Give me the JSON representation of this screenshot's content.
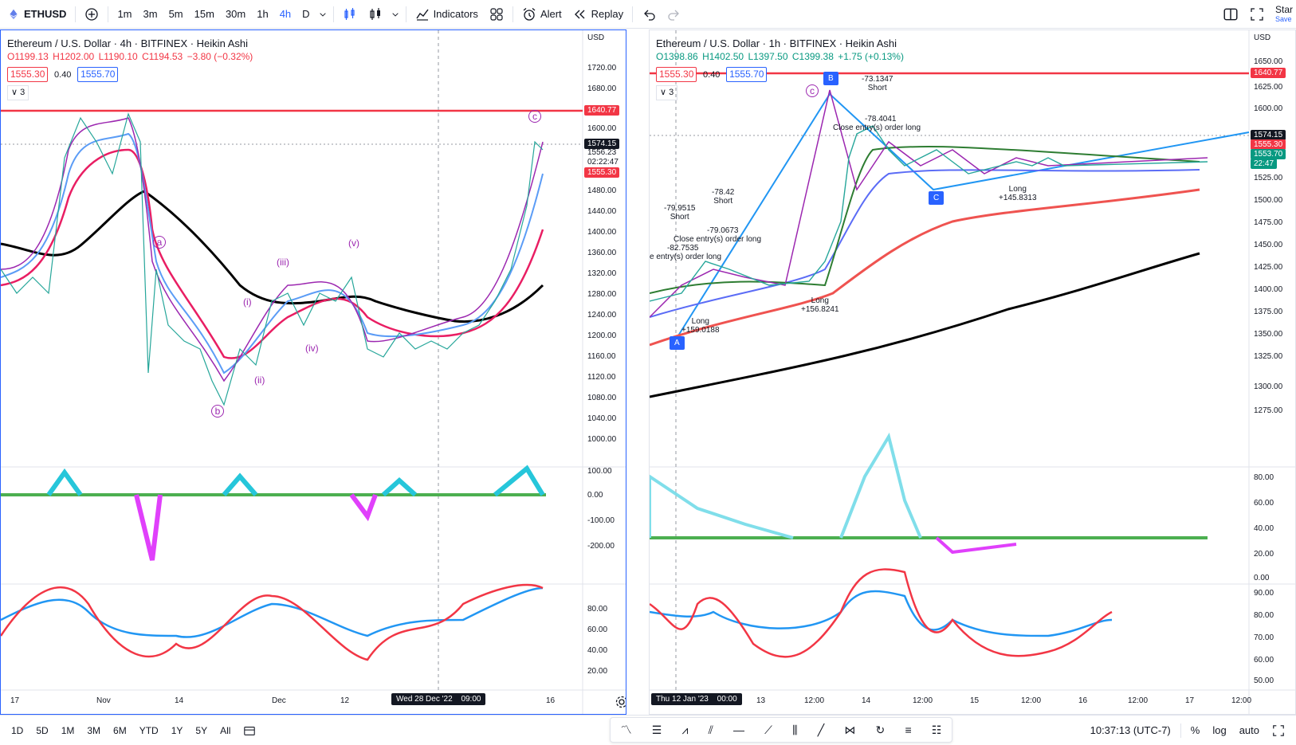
{
  "toolbar": {
    "symbol": "ETHUSD",
    "timeframes": [
      "1m",
      "3m",
      "5m",
      "15m",
      "30m",
      "1h",
      "4h",
      "D"
    ],
    "active_timeframe": "4h",
    "indicators_label": "Indicators",
    "alert_label": "Alert",
    "replay_label": "Replay",
    "star_label": "Star",
    "save_label": "Save"
  },
  "left_chart": {
    "title": "Ethereum / U.S. Dollar · 4h · BITFINEX · Heikin Ashi",
    "ohlc": {
      "o": "O1199.13",
      "h": "H1202.00",
      "l": "L1190.10",
      "c": "C1194.53",
      "chg": "−3.80 (−0.32%)"
    },
    "bid": "1555.30",
    "spread": "0.40",
    "ask": "1555.70",
    "indicator_count": "3",
    "currency": "USD",
    "price_scale": [
      "1720.00",
      "1680.00",
      "1640.00",
      "1600.00",
      "1560.00",
      "1520.00",
      "1480.00",
      "1440.00",
      "1400.00",
      "1360.00",
      "1320.00",
      "1280.00",
      "1240.00",
      "1200.00",
      "1160.00",
      "1120.00",
      "1080.00",
      "1040.00",
      "1000.00"
    ],
    "tags": {
      "resistance": "1640.77",
      "last": "1574.15",
      "close": "1556.23",
      "countdown": "02:22:47",
      "bid": "1555.30"
    },
    "macd_scale": [
      "100.00",
      "0.00",
      "-100.00",
      "-200.00"
    ],
    "rsi_scale": [
      "80.00",
      "60.00",
      "40.00",
      "20.00"
    ],
    "time_labels": [
      "17",
      "Nov",
      "14",
      "Dec",
      "12",
      "16"
    ],
    "crosshair_time": "Wed 28 Dec '22",
    "crosshair_clock": "09:00",
    "waves": [
      "a",
      "b",
      "c",
      "(i)",
      "(ii)",
      "(iii)",
      "(iv)",
      "(v)"
    ]
  },
  "right_chart": {
    "title": "Ethereum / U.S. Dollar · 1h · BITFINEX · Heikin Ashi",
    "ohlc": {
      "o": "O1398.86",
      "h": "H1402.50",
      "l": "L1397.50",
      "c": "C1399.38",
      "chg": "+1.75 (+0.13%)"
    },
    "bid": "1555.30",
    "spread": "0.40",
    "ask": "1555.70",
    "indicator_count": "3",
    "currency": "USD",
    "price_scale": [
      "1650.00",
      "1625.00",
      "1600.00",
      "1575.00",
      "1550.00",
      "1525.00",
      "1500.00",
      "1475.00",
      "1450.00",
      "1425.00",
      "1400.00",
      "1375.00",
      "1350.00",
      "1325.00",
      "1300.00",
      "1275.00"
    ],
    "tags": {
      "resistance": "1640.77",
      "last": "1574.15",
      "bid": "1555.30",
      "close": "1553.70",
      "countdown": "22:47"
    },
    "macd_scale": [
      "80.00",
      "60.00",
      "40.00",
      "20.00",
      "0.00"
    ],
    "rsi_scale": [
      "90.00",
      "80.00",
      "70.00",
      "60.00",
      "50.00"
    ],
    "time_labels": [
      "13",
      "12:00",
      "14",
      "12:00",
      "15",
      "12:00",
      "16",
      "12:00",
      "17",
      "12:00"
    ],
    "crosshair_time": "Thu 12 Jan '23",
    "crosshair_clock": "00:00",
    "annotations": {
      "short1_val": "-79.9515",
      "short1": "Short",
      "short2_val": "-78.42",
      "short2": "Short",
      "short3_val": "-73.1347",
      "short3": "Short",
      "close1_val": "-82.7535",
      "close1": "e entry(s) order long",
      "close2_val": "-79.0673",
      "close2": "Close entry(s) order long",
      "close3_val": "-78.4041",
      "close3": "Close entry(s) order long",
      "long1": "Long",
      "long1_val": "+159.0188",
      "long2": "Long",
      "long2_val": "+156.8241",
      "long3": "Long",
      "long3_val": "+145.8313",
      "point_a": "A",
      "point_b": "B",
      "point_c": "C",
      "wave_c": "c"
    }
  },
  "bottom_bar": {
    "ranges": [
      "1D",
      "5D",
      "1M",
      "3M",
      "6M",
      "YTD",
      "1Y",
      "5Y",
      "All"
    ],
    "clock": "10:37:13 (UTC-7)",
    "percent": "%",
    "log": "log",
    "auto": "auto"
  },
  "colors": {
    "accent": "#2962ff",
    "red": "#f23645",
    "green": "#089981"
  }
}
